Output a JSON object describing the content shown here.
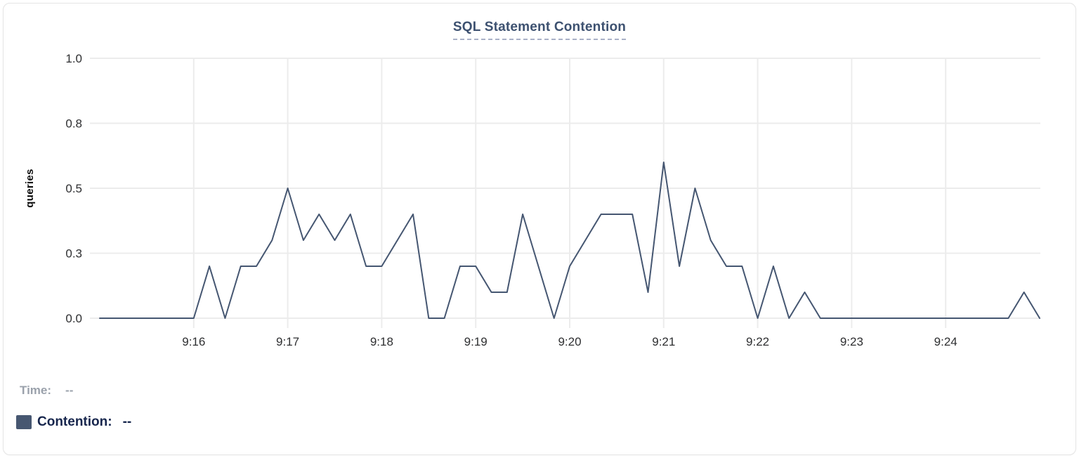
{
  "card": {
    "title": "SQL Statement Contention"
  },
  "legend": {
    "time_label": "Time:",
    "time_value": "--",
    "series_label": "Contention:",
    "series_value": "--",
    "swatch_color": "#475771"
  },
  "colors": {
    "line": "#455671",
    "grid": "#ececec",
    "title": "#3d5170",
    "title_underline": "#a9b1c7",
    "tick_text": "#2e2f31",
    "legend_muted": "#9aa1ab",
    "legend_dark": "#17264d",
    "card_border": "#e4e4e4"
  },
  "chart_data": {
    "type": "line",
    "title": "SQL Statement Contention",
    "xlabel": "",
    "ylabel": "queries",
    "ylim": [
      0,
      1
    ],
    "grid": true,
    "legend_position": "bottom-left",
    "yticks": [
      {
        "label": "0.0",
        "value": 0
      },
      {
        "label": "0.3",
        "value": 0.25
      },
      {
        "label": "0.5",
        "value": 0.5
      },
      {
        "label": "0.8",
        "value": 0.75
      },
      {
        "label": "1.0",
        "value": 1
      }
    ],
    "xticks": [
      "9:16",
      "9:17",
      "9:18",
      "9:19",
      "9:20",
      "9:21",
      "9:22",
      "9:23",
      "9:24"
    ],
    "x_start": "9:15:00",
    "x_end": "9:25:00",
    "interval_seconds": 10,
    "series": [
      {
        "name": "Contention",
        "color": "#455671",
        "unit": "queries",
        "values": [
          0,
          0,
          0,
          0,
          0,
          0,
          0,
          0.2,
          0,
          0.2,
          0.2,
          0.3,
          0.5,
          0.3,
          0.4,
          0.3,
          0.4,
          0.2,
          0.2,
          0.3,
          0.4,
          0,
          0,
          0.2,
          0.2,
          0.1,
          0.1,
          0.4,
          0.2,
          0,
          0.2,
          0.3,
          0.4,
          0.4,
          0.4,
          0.1,
          0.6,
          0.2,
          0.5,
          0.3,
          0.2,
          0.2,
          0,
          0.2,
          0,
          0.1,
          0,
          0,
          0,
          0,
          0,
          0,
          0,
          0,
          0,
          0,
          0,
          0,
          0,
          0.1,
          0
        ]
      }
    ]
  }
}
